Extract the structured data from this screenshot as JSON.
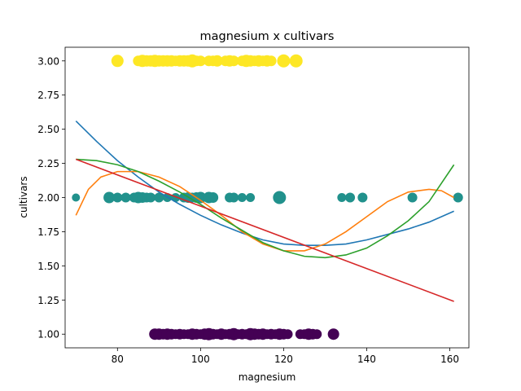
{
  "chart_data": {
    "type": "scatter",
    "title": "magnesium x cultivars",
    "xlabel": "magnesium",
    "ylabel": "cultivars",
    "xlim": [
      67.4,
      164.6
    ],
    "ylim": [
      0.9,
      3.1
    ],
    "xticks": [
      80,
      100,
      120,
      140,
      160
    ],
    "xtick_labels": [
      "80",
      "100",
      "120",
      "140",
      "160"
    ],
    "yticks": [
      1.0,
      1.25,
      1.5,
      1.75,
      2.0,
      2.25,
      2.5,
      2.75,
      3.0
    ],
    "ytick_labels": [
      "1.00",
      "1.25",
      "1.50",
      "1.75",
      "2.00",
      "2.25",
      "2.50",
      "2.75",
      "3.00"
    ],
    "grid": false,
    "scatter_groups": [
      {
        "cultivar": 1,
        "color": "#440154",
        "points": [
          [
            89,
            14
          ],
          [
            90,
            14
          ],
          [
            91,
            13
          ],
          [
            92,
            14
          ],
          [
            93,
            13
          ],
          [
            94,
            12
          ],
          [
            95,
            13
          ],
          [
            96,
            12
          ],
          [
            97,
            12
          ],
          [
            98,
            14
          ],
          [
            99,
            13
          ],
          [
            100,
            12
          ],
          [
            101,
            14
          ],
          [
            102,
            15
          ],
          [
            103,
            13
          ],
          [
            104,
            12
          ],
          [
            105,
            14
          ],
          [
            106,
            12
          ],
          [
            107,
            13
          ],
          [
            108,
            15
          ],
          [
            109,
            12
          ],
          [
            110,
            13
          ],
          [
            111,
            12
          ],
          [
            112,
            15
          ],
          [
            113,
            14
          ],
          [
            114,
            13
          ],
          [
            115,
            14
          ],
          [
            116,
            12
          ],
          [
            117,
            13
          ],
          [
            118,
            12
          ],
          [
            119,
            14
          ],
          [
            120,
            13
          ],
          [
            121,
            12
          ],
          [
            124,
            12
          ],
          [
            125,
            12
          ],
          [
            126,
            14
          ],
          [
            127,
            13
          ],
          [
            128,
            12
          ],
          [
            132,
            14
          ]
        ]
      },
      {
        "cultivar": 2,
        "color": "#21918c",
        "points": [
          [
            70,
            10
          ],
          [
            78,
            14
          ],
          [
            80,
            12
          ],
          [
            82,
            12
          ],
          [
            84,
            12
          ],
          [
            85,
            14
          ],
          [
            86,
            13
          ],
          [
            87,
            12
          ],
          [
            88,
            12
          ],
          [
            90,
            12
          ],
          [
            92,
            11
          ],
          [
            94,
            11
          ],
          [
            96,
            12
          ],
          [
            97,
            13
          ],
          [
            98,
            12
          ],
          [
            99,
            13
          ],
          [
            100,
            14
          ],
          [
            102,
            14
          ],
          [
            103,
            13
          ],
          [
            107,
            12
          ],
          [
            108,
            12
          ],
          [
            110,
            11
          ],
          [
            112,
            11
          ],
          [
            119,
            16
          ],
          [
            134,
            11
          ],
          [
            136,
            12
          ],
          [
            139,
            12
          ],
          [
            151,
            12
          ],
          [
            162,
            12
          ]
        ]
      },
      {
        "cultivar": 3,
        "color": "#fde725",
        "points": [
          [
            80,
            15
          ],
          [
            85,
            13
          ],
          [
            86,
            15
          ],
          [
            87,
            14
          ],
          [
            88,
            14
          ],
          [
            89,
            15
          ],
          [
            90,
            14
          ],
          [
            91,
            14
          ],
          [
            92,
            14
          ],
          [
            93,
            14
          ],
          [
            94,
            13
          ],
          [
            95,
            14
          ],
          [
            96,
            14
          ],
          [
            97,
            14
          ],
          [
            98,
            16
          ],
          [
            99,
            13
          ],
          [
            100,
            13
          ],
          [
            102,
            13
          ],
          [
            103,
            13
          ],
          [
            104,
            14
          ],
          [
            106,
            13
          ],
          [
            107,
            14
          ],
          [
            108,
            13
          ],
          [
            110,
            13
          ],
          [
            111,
            15
          ],
          [
            112,
            14
          ],
          [
            113,
            13
          ],
          [
            114,
            14
          ],
          [
            115,
            13
          ],
          [
            116,
            14
          ],
          [
            117,
            13
          ],
          [
            120,
            16
          ],
          [
            123,
            16
          ]
        ]
      }
    ],
    "fit_lines": [
      {
        "color": "#1f77b4",
        "points": [
          [
            70,
            2.56
          ],
          [
            75,
            2.41
          ],
          [
            80,
            2.27
          ],
          [
            85,
            2.15
          ],
          [
            90,
            2.04
          ],
          [
            95,
            1.95
          ],
          [
            100,
            1.87
          ],
          [
            105,
            1.8
          ],
          [
            110,
            1.74
          ],
          [
            115,
            1.69
          ],
          [
            120,
            1.66
          ],
          [
            125,
            1.65
          ],
          [
            130,
            1.65
          ],
          [
            135,
            1.66
          ],
          [
            140,
            1.69
          ],
          [
            145,
            1.73
          ],
          [
            150,
            1.77
          ],
          [
            155,
            1.82
          ],
          [
            161,
            1.9
          ]
        ]
      },
      {
        "color": "#ff7f0e",
        "points": [
          [
            70,
            1.87
          ],
          [
            73,
            2.06
          ],
          [
            76,
            2.15
          ],
          [
            80,
            2.19
          ],
          [
            85,
            2.19
          ],
          [
            90,
            2.15
          ],
          [
            95,
            2.08
          ],
          [
            100,
            1.98
          ],
          [
            105,
            1.87
          ],
          [
            110,
            1.75
          ],
          [
            115,
            1.66
          ],
          [
            120,
            1.61
          ],
          [
            125,
            1.61
          ],
          [
            130,
            1.66
          ],
          [
            135,
            1.75
          ],
          [
            140,
            1.86
          ],
          [
            145,
            1.97
          ],
          [
            150,
            2.04
          ],
          [
            155,
            2.06
          ],
          [
            158,
            2.05
          ],
          [
            161,
            2.0
          ]
        ]
      },
      {
        "color": "#2ca02c",
        "points": [
          [
            70,
            2.28
          ],
          [
            75,
            2.27
          ],
          [
            80,
            2.24
          ],
          [
            85,
            2.19
          ],
          [
            90,
            2.12
          ],
          [
            95,
            2.04
          ],
          [
            100,
            1.95
          ],
          [
            105,
            1.85
          ],
          [
            110,
            1.76
          ],
          [
            115,
            1.67
          ],
          [
            120,
            1.61
          ],
          [
            125,
            1.57
          ],
          [
            130,
            1.56
          ],
          [
            135,
            1.58
          ],
          [
            140,
            1.63
          ],
          [
            145,
            1.72
          ],
          [
            150,
            1.83
          ],
          [
            155,
            1.97
          ],
          [
            161,
            2.24
          ]
        ]
      },
      {
        "color": "#d62728",
        "points": [
          [
            70,
            2.28
          ],
          [
            161,
            1.24
          ]
        ]
      }
    ]
  }
}
